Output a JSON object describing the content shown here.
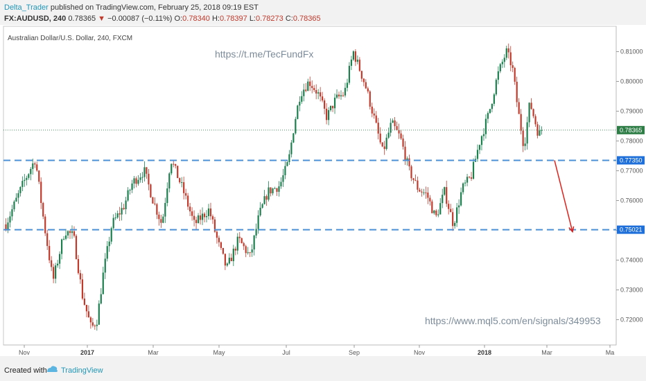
{
  "header": {
    "author": "Delta_Trader",
    "published": "published on TradingView.com, February 25, 2018 09:19 EST",
    "symbol": "FX:AUDUSD, 240",
    "last": "0.78365",
    "arrow": "▼",
    "change": "−0.00087 (−0.11%)",
    "o_label": "O:",
    "o_value": "0.78340",
    "h_label": "H:",
    "h_value": "0.78397",
    "l_label": "L:",
    "l_value": "0.78273",
    "c_label": "C:",
    "c_value": "0.78365"
  },
  "footer": {
    "created_with": "Created with",
    "brand": "TradingView"
  },
  "colors": {
    "up": "#1b7f4e",
    "down": "#c0392b",
    "level_line": "#4a90d9",
    "tag_blue": "#1e6fd9",
    "tag_green": "#2e7d46",
    "arrow": "#e0201b"
  },
  "chart_data": {
    "type": "candlestick",
    "title": "Australian Dollar/U.S. Dollar, 240, FXCM",
    "watermark_top": "https://t.me/TecFundFx",
    "watermark_bottom": "https://www.mql5.com/en/signals/349953",
    "x_ticks": [
      {
        "label": "Nov",
        "bold": false
      },
      {
        "label": "2017",
        "bold": true
      },
      {
        "label": "Mar",
        "bold": false
      },
      {
        "label": "May",
        "bold": false
      },
      {
        "label": "Jul",
        "bold": false
      },
      {
        "label": "Sep",
        "bold": false
      },
      {
        "label": "Nov",
        "bold": false
      },
      {
        "label": "2018",
        "bold": true
      },
      {
        "label": "Mar",
        "bold": false
      },
      {
        "label": "Ma",
        "bold": false
      }
    ],
    "y_ticks": [
      0.72,
      0.73,
      0.74,
      0.75,
      0.76,
      0.77,
      0.78,
      0.79,
      0.8,
      0.81
    ],
    "y_tick_labels": [
      "0.72000",
      "0.73000",
      "0.74000",
      "0.75000",
      "0.76000",
      "0.77000",
      "0.78000",
      "0.79000",
      "0.80000",
      "0.81000"
    ],
    "ylim": [
      0.7115,
      0.8185
    ],
    "current_price": {
      "value": 0.78365,
      "label": "0.78365"
    },
    "levels": [
      {
        "value": 0.7735,
        "label": "0.77350"
      },
      {
        "value": 0.75021,
        "label": "0.75021"
      }
    ],
    "projection": {
      "from": 0.7735,
      "to": 0.7495
    },
    "path_points": [
      [
        0.0,
        0.752
      ],
      [
        0.03,
        0.766
      ],
      [
        0.05,
        0.774
      ],
      [
        0.065,
        0.752
      ],
      [
        0.08,
        0.733
      ],
      [
        0.1,
        0.75
      ],
      [
        0.115,
        0.748
      ],
      [
        0.13,
        0.728
      ],
      [
        0.145,
        0.717
      ],
      [
        0.155,
        0.72
      ],
      [
        0.165,
        0.735
      ],
      [
        0.18,
        0.752
      ],
      [
        0.2,
        0.758
      ],
      [
        0.215,
        0.766
      ],
      [
        0.235,
        0.77
      ],
      [
        0.25,
        0.76
      ],
      [
        0.265,
        0.752
      ],
      [
        0.28,
        0.774
      ],
      [
        0.3,
        0.764
      ],
      [
        0.32,
        0.752
      ],
      [
        0.345,
        0.757
      ],
      [
        0.36,
        0.746
      ],
      [
        0.375,
        0.737
      ],
      [
        0.395,
        0.747
      ],
      [
        0.415,
        0.741
      ],
      [
        0.43,
        0.755
      ],
      [
        0.445,
        0.763
      ],
      [
        0.465,
        0.765
      ],
      [
        0.48,
        0.773
      ],
      [
        0.49,
        0.786
      ],
      [
        0.5,
        0.796
      ],
      [
        0.515,
        0.8
      ],
      [
        0.53,
        0.796
      ],
      [
        0.545,
        0.788
      ],
      [
        0.56,
        0.794
      ],
      [
        0.575,
        0.796
      ],
      [
        0.59,
        0.81
      ],
      [
        0.61,
        0.799
      ],
      [
        0.625,
        0.788
      ],
      [
        0.64,
        0.776
      ],
      [
        0.655,
        0.786
      ],
      [
        0.67,
        0.781
      ],
      [
        0.685,
        0.77
      ],
      [
        0.7,
        0.764
      ],
      [
        0.715,
        0.762
      ],
      [
        0.73,
        0.754
      ],
      [
        0.745,
        0.763
      ],
      [
        0.76,
        0.752
      ],
      [
        0.775,
        0.764
      ],
      [
        0.79,
        0.768
      ],
      [
        0.805,
        0.78
      ],
      [
        0.82,
        0.789
      ],
      [
        0.835,
        0.802
      ],
      [
        0.85,
        0.81
      ],
      [
        0.86,
        0.805
      ],
      [
        0.87,
        0.79
      ],
      [
        0.88,
        0.778
      ],
      [
        0.89,
        0.793
      ],
      [
        0.905,
        0.782
      ],
      [
        0.91,
        0.7836
      ]
    ]
  }
}
